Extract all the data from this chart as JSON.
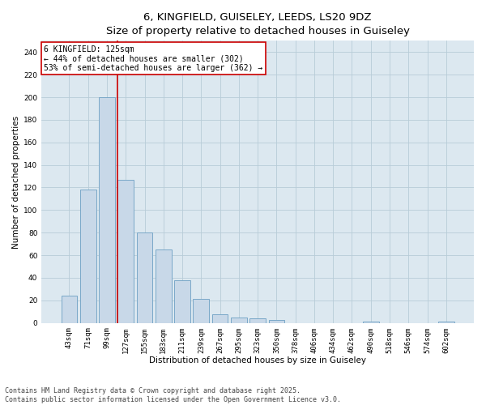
{
  "title_line1": "6, KINGFIELD, GUISELEY, LEEDS, LS20 9DZ",
  "title_line2": "Size of property relative to detached houses in Guiseley",
  "xlabel": "Distribution of detached houses by size in Guiseley",
  "ylabel": "Number of detached properties",
  "categories": [
    "43sqm",
    "71sqm",
    "99sqm",
    "127sqm",
    "155sqm",
    "183sqm",
    "211sqm",
    "239sqm",
    "267sqm",
    "295sqm",
    "323sqm",
    "350sqm",
    "378sqm",
    "406sqm",
    "434sqm",
    "462sqm",
    "490sqm",
    "518sqm",
    "546sqm",
    "574sqm",
    "602sqm"
  ],
  "values": [
    24,
    118,
    200,
    127,
    80,
    65,
    38,
    21,
    8,
    5,
    4,
    3,
    0,
    0,
    0,
    0,
    1,
    0,
    0,
    0,
    1
  ],
  "bar_color": "#c8d8e8",
  "bar_edge_color": "#7aa8c8",
  "vline_x_index": 3,
  "vline_color": "#cc0000",
  "annotation_text": "6 KINGFIELD: 125sqm\n← 44% of detached houses are smaller (302)\n53% of semi-detached houses are larger (362) →",
  "annotation_box_color": "#ffffff",
  "annotation_box_edge_color": "#cc0000",
  "ylim": [
    0,
    250
  ],
  "yticks": [
    0,
    20,
    40,
    60,
    80,
    100,
    120,
    140,
    160,
    180,
    200,
    220,
    240
  ],
  "grid_color": "#b8ccd8",
  "background_color": "#dce8f0",
  "footer_text": "Contains HM Land Registry data © Crown copyright and database right 2025.\nContains public sector information licensed under the Open Government Licence v3.0.",
  "title_fontsize": 9.5,
  "axis_label_fontsize": 7.5,
  "tick_fontsize": 6.5,
  "annotation_fontsize": 7,
  "footer_fontsize": 6
}
